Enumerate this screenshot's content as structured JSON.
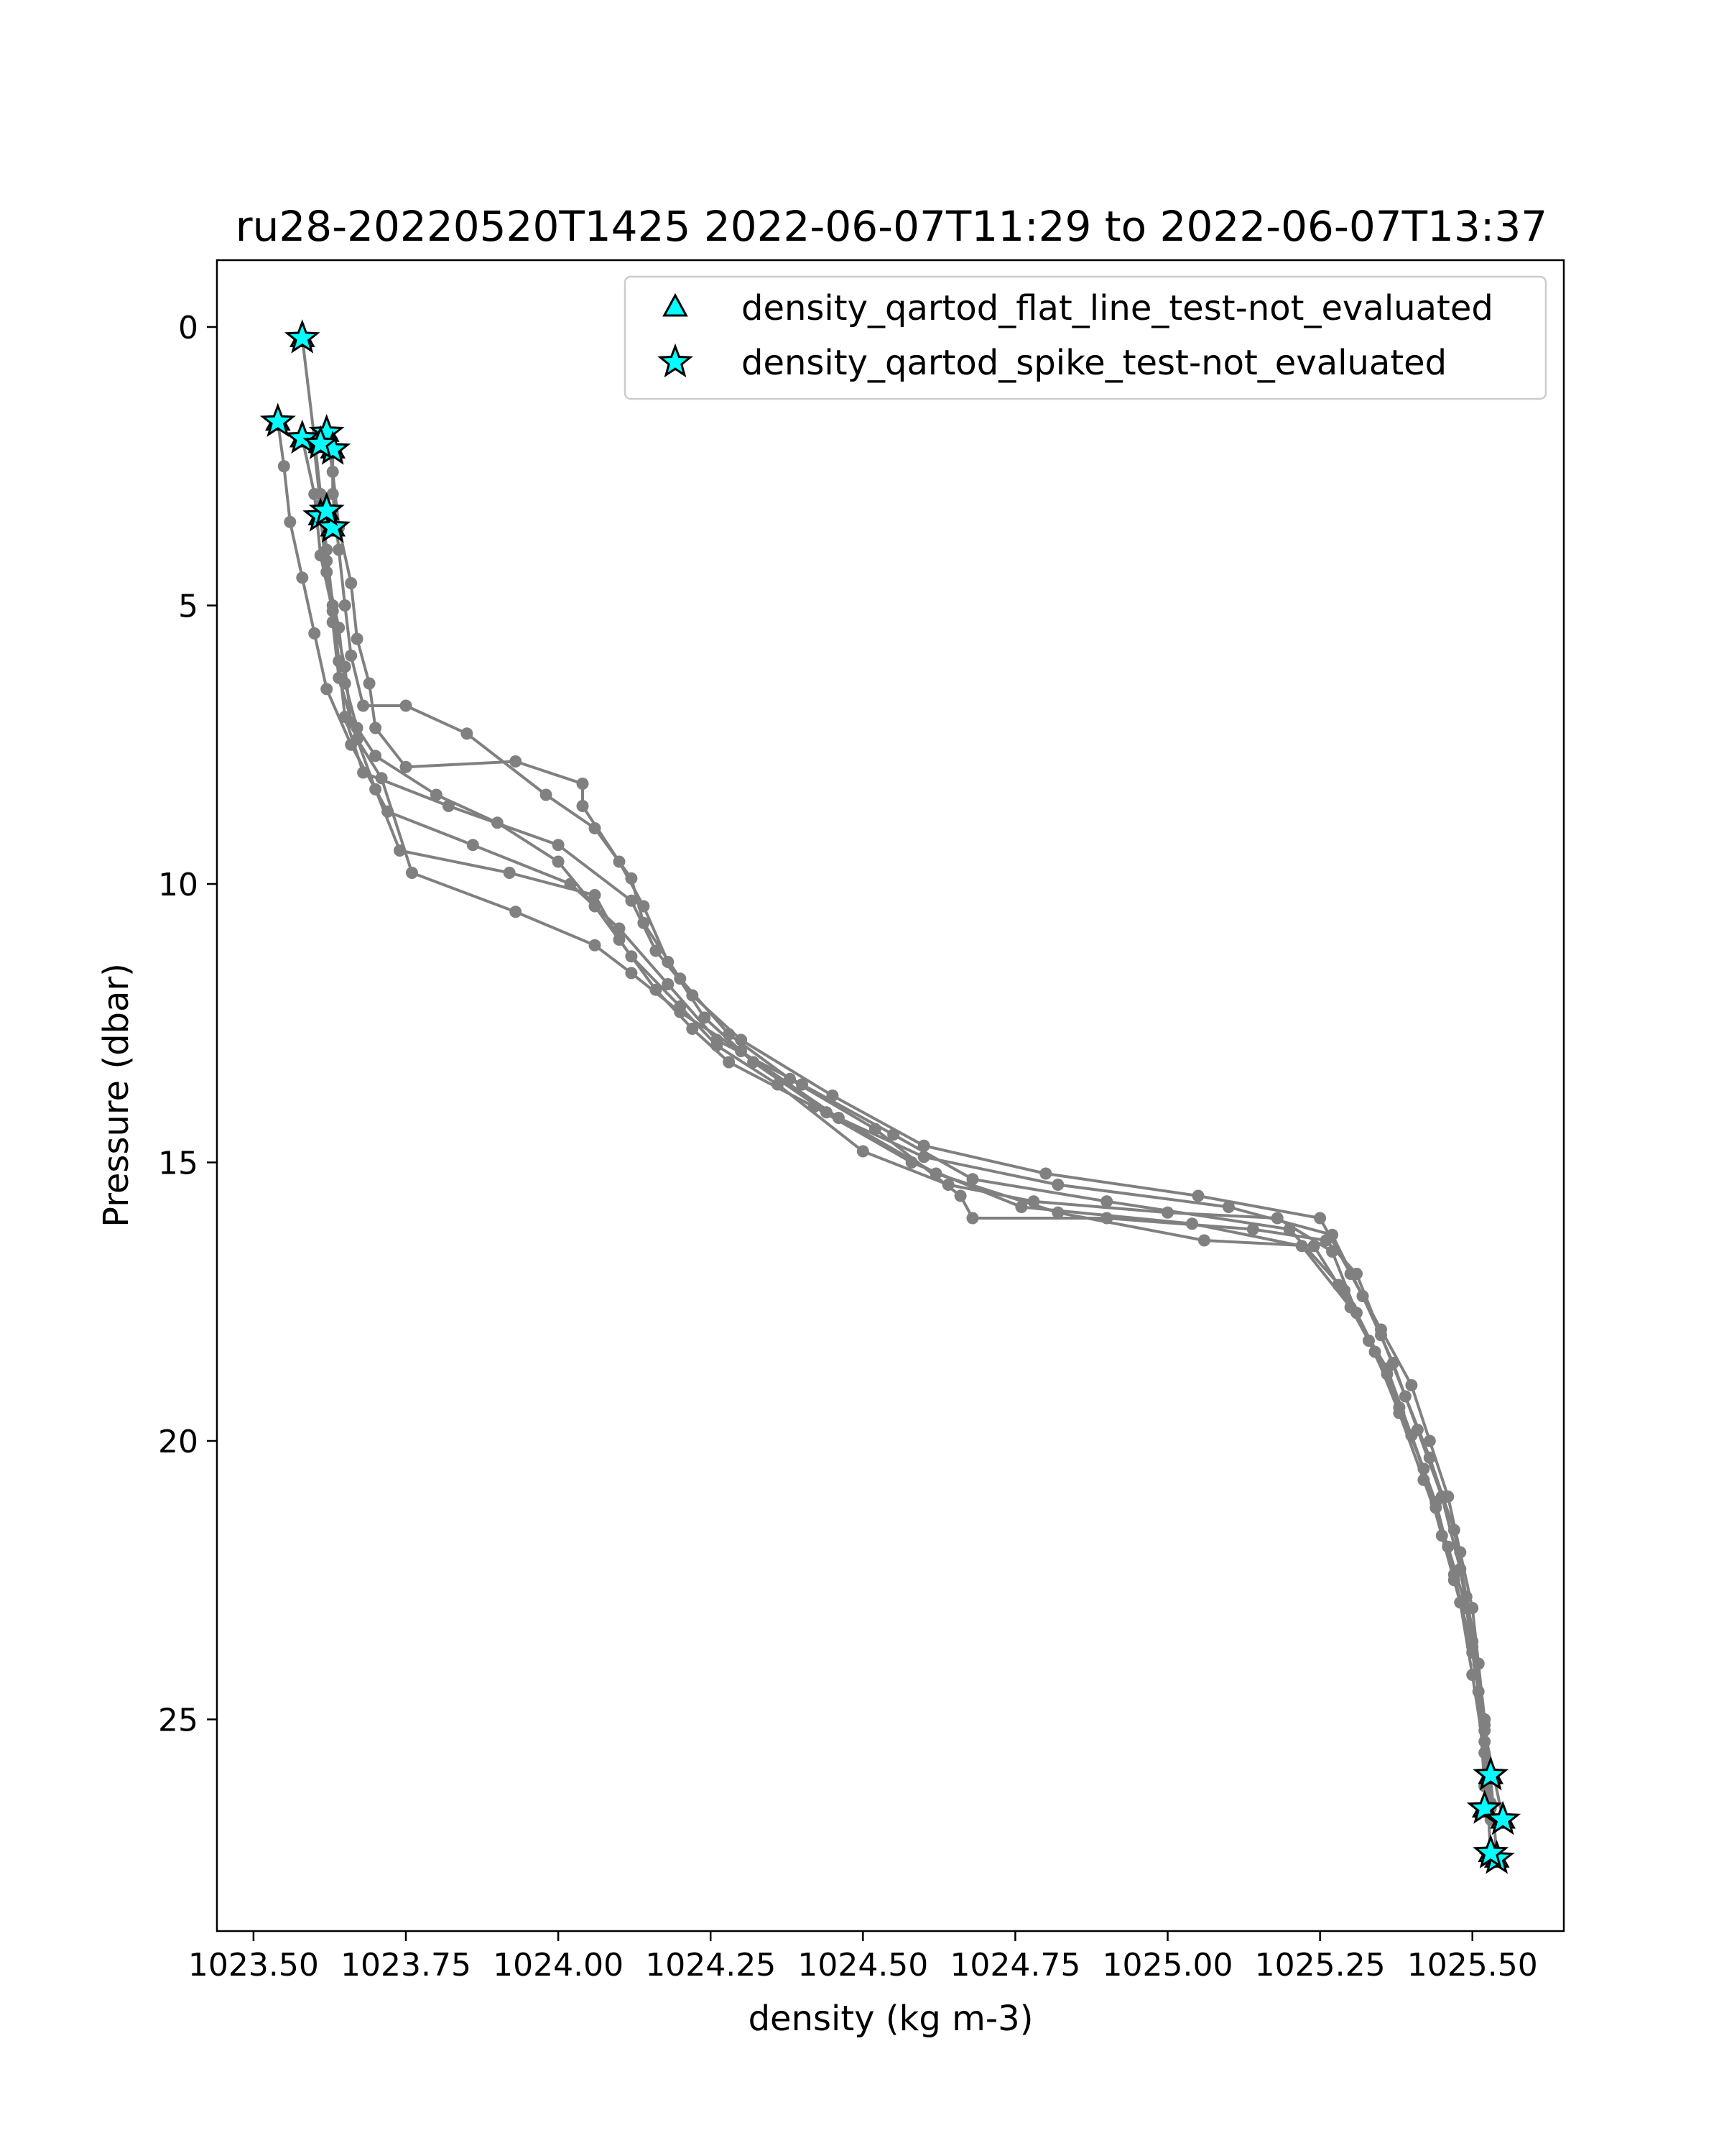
{
  "chart_data": {
    "type": "line",
    "title": "ru28-20220520T1425 2022-06-07T11:29 to 2022-06-07T13:37",
    "xlabel": "density (kg m-3)",
    "ylabel": "Pressure (dbar)",
    "xlim": [
      1023.44,
      1025.65
    ],
    "ylim": [
      28.8,
      -1.2
    ],
    "y_inverted": true,
    "grid": false,
    "legend_placement": "top-right",
    "xticks": [
      1023.5,
      1023.75,
      1024.0,
      1024.25,
      1024.5,
      1024.75,
      1025.0,
      1025.25,
      1025.5
    ],
    "xtick_labels": [
      "1023.50",
      "1023.75",
      "1024.00",
      "1024.25",
      "1024.50",
      "1024.75",
      "1025.00",
      "1025.25",
      "1025.50"
    ],
    "yticks": [
      0,
      5,
      10,
      15,
      20,
      25
    ],
    "ytick_labels": [
      "0",
      "5",
      "10",
      "15",
      "20",
      "25"
    ],
    "colors": {
      "profile_line": "#808080",
      "marker_fill": "#00ffff",
      "marker_edge": "#000000"
    },
    "series": [
      {
        "points": [
          [
            1023.58,
            0.2
          ],
          [
            1023.6,
            2.0
          ],
          [
            1023.61,
            3.0
          ],
          [
            1023.62,
            4.0
          ],
          [
            1023.63,
            5.0
          ],
          [
            1023.64,
            6.0
          ],
          [
            1023.65,
            7.0
          ],
          [
            1023.68,
            8.0
          ],
          [
            1023.82,
            8.6
          ],
          [
            1024.0,
            9.3
          ],
          [
            1024.12,
            10.3
          ],
          [
            1024.16,
            11.2
          ],
          [
            1024.22,
            12.0
          ],
          [
            1024.3,
            12.8
          ],
          [
            1024.45,
            13.8
          ],
          [
            1024.6,
            14.7
          ],
          [
            1024.8,
            15.2
          ],
          [
            1025.05,
            15.6
          ],
          [
            1025.25,
            16.0
          ],
          [
            1025.3,
            17.0
          ],
          [
            1025.35,
            18.0
          ],
          [
            1025.4,
            19.0
          ],
          [
            1025.43,
            20.0
          ],
          [
            1025.46,
            21.0
          ],
          [
            1025.48,
            22.0
          ],
          [
            1025.5,
            23.0
          ],
          [
            1025.51,
            24.0
          ],
          [
            1025.52,
            25.0
          ],
          [
            1025.53,
            26.0
          ],
          [
            1025.54,
            27.5
          ]
        ]
      },
      {
        "points": [
          [
            1023.54,
            1.7
          ],
          [
            1023.55,
            2.5
          ],
          [
            1023.56,
            3.5
          ],
          [
            1023.58,
            4.5
          ],
          [
            1023.6,
            5.5
          ],
          [
            1023.62,
            6.5
          ],
          [
            1023.66,
            7.5
          ],
          [
            1023.72,
            8.7
          ],
          [
            1023.86,
            9.3
          ],
          [
            1024.02,
            10.0
          ],
          [
            1024.1,
            10.8
          ],
          [
            1024.18,
            11.8
          ],
          [
            1024.26,
            12.8
          ],
          [
            1024.4,
            13.6
          ],
          [
            1024.55,
            14.5
          ],
          [
            1024.68,
            15.3
          ],
          [
            1024.9,
            15.7
          ],
          [
            1025.2,
            16.2
          ],
          [
            1025.29,
            17.3
          ],
          [
            1025.34,
            18.4
          ],
          [
            1025.38,
            19.5
          ],
          [
            1025.42,
            20.7
          ],
          [
            1025.46,
            21.9
          ],
          [
            1025.49,
            23.0
          ],
          [
            1025.51,
            24.5
          ],
          [
            1025.52,
            26.2
          ]
        ]
      },
      {
        "points": [
          [
            1023.62,
            1.9
          ],
          [
            1023.63,
            2.6
          ],
          [
            1023.64,
            3.6
          ],
          [
            1023.66,
            4.6
          ],
          [
            1023.67,
            5.6
          ],
          [
            1023.69,
            6.4
          ],
          [
            1023.7,
            7.2
          ],
          [
            1023.75,
            7.9
          ],
          [
            1023.93,
            7.8
          ],
          [
            1024.04,
            8.2
          ],
          [
            1024.04,
            8.6
          ],
          [
            1024.1,
            9.6
          ],
          [
            1024.14,
            10.4
          ],
          [
            1024.18,
            11.4
          ],
          [
            1024.24,
            12.4
          ],
          [
            1024.32,
            13.2
          ],
          [
            1024.44,
            14.1
          ],
          [
            1024.6,
            14.9
          ],
          [
            1024.82,
            15.4
          ],
          [
            1025.1,
            15.8
          ],
          [
            1025.27,
            16.3
          ],
          [
            1025.32,
            17.4
          ],
          [
            1025.37,
            18.6
          ],
          [
            1025.41,
            19.8
          ],
          [
            1025.45,
            21.0
          ],
          [
            1025.48,
            22.3
          ],
          [
            1025.5,
            23.6
          ],
          [
            1025.52,
            25.0
          ],
          [
            1025.53,
            26.6
          ]
        ]
      },
      {
        "points": [
          [
            1023.58,
            2.0
          ],
          [
            1023.6,
            3.0
          ],
          [
            1023.61,
            4.1
          ],
          [
            1023.63,
            5.1
          ],
          [
            1023.65,
            6.1
          ],
          [
            1023.66,
            7.1
          ],
          [
            1023.7,
            8.3
          ],
          [
            1023.74,
            9.4
          ],
          [
            1023.92,
            9.8
          ],
          [
            1024.06,
            10.2
          ],
          [
            1024.1,
            11.0
          ],
          [
            1024.16,
            11.9
          ],
          [
            1024.22,
            12.6
          ],
          [
            1024.28,
            13.2
          ],
          [
            1024.42,
            14.0
          ],
          [
            1024.58,
            15.0
          ],
          [
            1024.76,
            15.8
          ],
          [
            1025.04,
            16.1
          ],
          [
            1025.22,
            16.5
          ],
          [
            1025.3,
            17.6
          ],
          [
            1025.36,
            18.7
          ],
          [
            1025.4,
            19.9
          ],
          [
            1025.44,
            21.1
          ],
          [
            1025.47,
            22.4
          ],
          [
            1025.5,
            23.8
          ],
          [
            1025.52,
            25.2
          ],
          [
            1025.55,
            26.8
          ]
        ]
      },
      {
        "points": [
          [
            1023.6,
            2.2
          ],
          [
            1023.61,
            3.2
          ],
          [
            1023.62,
            4.2
          ],
          [
            1023.63,
            5.3
          ],
          [
            1023.64,
            6.3
          ],
          [
            1023.67,
            7.4
          ],
          [
            1023.71,
            8.1
          ],
          [
            1023.76,
            9.8
          ],
          [
            1023.93,
            10.5
          ],
          [
            1024.06,
            11.1
          ],
          [
            1024.12,
            11.6
          ],
          [
            1024.2,
            12.3
          ],
          [
            1024.3,
            13.0
          ],
          [
            1024.46,
            14.2
          ],
          [
            1024.62,
            15.2
          ],
          [
            1024.82,
            15.9
          ],
          [
            1025.06,
            16.4
          ],
          [
            1025.24,
            16.5
          ],
          [
            1025.28,
            17.2
          ],
          [
            1025.33,
            18.2
          ],
          [
            1025.38,
            19.4
          ],
          [
            1025.42,
            20.5
          ],
          [
            1025.45,
            21.7
          ],
          [
            1025.48,
            22.9
          ],
          [
            1025.5,
            24.2
          ],
          [
            1025.52,
            25.6
          ],
          [
            1025.53,
            27.4
          ]
        ]
      },
      {
        "points": [
          [
            1023.63,
            2.2
          ],
          [
            1023.63,
            3.0
          ],
          [
            1023.64,
            4.0
          ],
          [
            1023.65,
            5.0
          ],
          [
            1023.66,
            5.9
          ],
          [
            1023.68,
            6.8
          ],
          [
            1023.75,
            6.8
          ],
          [
            1023.85,
            7.3
          ],
          [
            1023.98,
            8.4
          ],
          [
            1024.06,
            9.0
          ],
          [
            1024.12,
            9.9
          ],
          [
            1024.14,
            10.7
          ],
          [
            1024.2,
            11.7
          ],
          [
            1024.28,
            12.7
          ],
          [
            1024.38,
            13.5
          ],
          [
            1024.52,
            14.4
          ],
          [
            1024.66,
            15.6
          ],
          [
            1024.68,
            16.0
          ],
          [
            1024.9,
            16.0
          ],
          [
            1025.14,
            16.2
          ],
          [
            1025.26,
            16.4
          ],
          [
            1025.31,
            17.0
          ],
          [
            1025.35,
            18.1
          ],
          [
            1025.39,
            19.2
          ],
          [
            1025.43,
            20.3
          ],
          [
            1025.47,
            21.6
          ],
          [
            1025.49,
            22.8
          ],
          [
            1025.51,
            24.0
          ],
          [
            1025.52,
            25.4
          ],
          [
            1025.53,
            26.5
          ]
        ]
      },
      {
        "points": [
          [
            1023.61,
            3.4
          ],
          [
            1023.62,
            4.4
          ],
          [
            1023.64,
            5.4
          ],
          [
            1023.65,
            6.4
          ],
          [
            1023.67,
            7.2
          ],
          [
            1023.7,
            7.7
          ],
          [
            1023.8,
            8.4
          ],
          [
            1023.9,
            8.9
          ],
          [
            1024.0,
            9.6
          ],
          [
            1024.06,
            10.4
          ],
          [
            1024.12,
            11.3
          ],
          [
            1024.2,
            12.2
          ],
          [
            1024.26,
            12.9
          ],
          [
            1024.36,
            13.6
          ],
          [
            1024.5,
            14.8
          ],
          [
            1024.64,
            15.4
          ],
          [
            1024.78,
            15.7
          ],
          [
            1025.0,
            15.9
          ],
          [
            1025.18,
            16.0
          ],
          [
            1025.27,
            16.6
          ],
          [
            1025.31,
            17.7
          ],
          [
            1025.36,
            18.8
          ],
          [
            1025.4,
            19.9
          ],
          [
            1025.44,
            21.2
          ],
          [
            1025.47,
            22.5
          ],
          [
            1025.5,
            23.7
          ],
          [
            1025.52,
            25.1
          ],
          [
            1025.53,
            26.8
          ]
        ]
      }
    ],
    "flat_line_markers": [
      [
        1023.58,
        0.2
      ],
      [
        1023.54,
        1.7
      ],
      [
        1023.58,
        2.0
      ],
      [
        1023.62,
        1.9
      ],
      [
        1023.63,
        2.2
      ],
      [
        1023.61,
        2.1
      ],
      [
        1023.61,
        3.4
      ],
      [
        1023.63,
        3.6
      ],
      [
        1023.62,
        3.3
      ],
      [
        1025.53,
        26.0
      ],
      [
        1025.52,
        26.6
      ],
      [
        1025.55,
        26.8
      ],
      [
        1025.54,
        27.5
      ],
      [
        1025.53,
        27.4
      ]
    ],
    "spike_markers": [
      [
        1023.58,
        0.2
      ],
      [
        1023.54,
        1.7
      ],
      [
        1023.58,
        2.0
      ],
      [
        1023.62,
        1.9
      ],
      [
        1023.63,
        2.2
      ],
      [
        1023.61,
        2.1
      ],
      [
        1023.61,
        3.4
      ],
      [
        1023.63,
        3.6
      ],
      [
        1023.62,
        3.3
      ],
      [
        1025.53,
        26.0
      ],
      [
        1025.52,
        26.6
      ],
      [
        1025.55,
        26.8
      ],
      [
        1025.54,
        27.5
      ],
      [
        1025.53,
        27.4
      ]
    ],
    "legend": [
      {
        "label": "density_qartod_flat_line_test-not_evaluated",
        "marker": "triangle"
      },
      {
        "label": "density_qartod_spike_test-not_evaluated",
        "marker": "star"
      }
    ]
  }
}
